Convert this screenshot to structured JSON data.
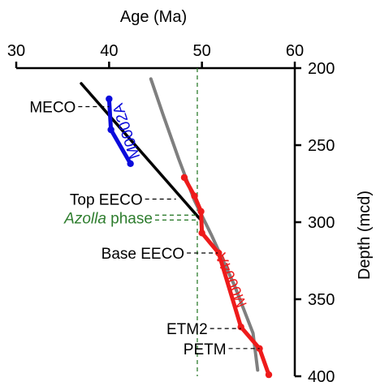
{
  "chart_data": {
    "type": "line",
    "x_axis": {
      "label": "Age (Ma)",
      "position": "top",
      "range": [
        30,
        60
      ],
      "ticks": [
        30,
        40,
        50,
        60
      ]
    },
    "y_axis": {
      "label": "Depth (mcd)",
      "position": "right",
      "range": [
        200,
        400
      ],
      "inverted": true,
      "ticks": [
        200,
        250,
        300,
        350,
        400
      ]
    },
    "grid": false,
    "series": [
      {
        "name": "M0002A",
        "color": "#0b0bdc",
        "label_color": "#0b0bdc",
        "points": [
          [
            40.0,
            220
          ],
          [
            40.2,
            240
          ],
          [
            42.3,
            262
          ]
        ]
      },
      {
        "name": "M0004A",
        "color": "#ee1b1b",
        "label_color": "#ee1b1b",
        "points": [
          [
            48.1,
            271
          ],
          [
            49.2,
            283
          ],
          [
            49.9,
            293
          ],
          [
            50.0,
            307
          ],
          [
            51.8,
            320
          ],
          [
            54.2,
            368
          ],
          [
            56.2,
            382
          ],
          [
            57.2,
            399
          ]
        ]
      },
      {
        "name": "",
        "color": "#000000",
        "points": [
          [
            37.0,
            210
          ],
          [
            49.8,
            298
          ]
        ]
      },
      {
        "name": "",
        "color": "#7f7f7f",
        "points": [
          [
            44.5,
            207
          ],
          [
            45.8,
            230
          ],
          [
            47.5,
            259
          ],
          [
            49.2,
            286
          ],
          [
            51.0,
            308
          ],
          [
            53.5,
            341
          ],
          [
            55.5,
            372
          ],
          [
            56.0,
            396
          ]
        ]
      }
    ],
    "reference_lines": [
      {
        "orientation": "vertical",
        "x": 49.5,
        "color": "#2e7d2e",
        "style": "dashed"
      }
    ],
    "annotations": [
      {
        "text": "MECO",
        "color": "#000000",
        "style": "normal",
        "target_x": 40.0,
        "y": 225
      },
      {
        "text": "Top EECO",
        "color": "#000000",
        "style": "normal",
        "target_x": 47.2,
        "y": 285
      },
      {
        "italic_part": "Azolla",
        "rest": " phase",
        "color": "#2e7d2e",
        "target_x": 49.5,
        "y": 297
      },
      {
        "text": "Base EECO",
        "color": "#000000",
        "style": "normal",
        "target_x": 51.7,
        "y": 320
      },
      {
        "text": "ETM2",
        "color": "#000000",
        "style": "normal",
        "target_x": 54.2,
        "y": 369
      },
      {
        "text": "PETM",
        "color": "#000000",
        "style": "normal",
        "target_x": 56.2,
        "y": 382
      }
    ]
  }
}
